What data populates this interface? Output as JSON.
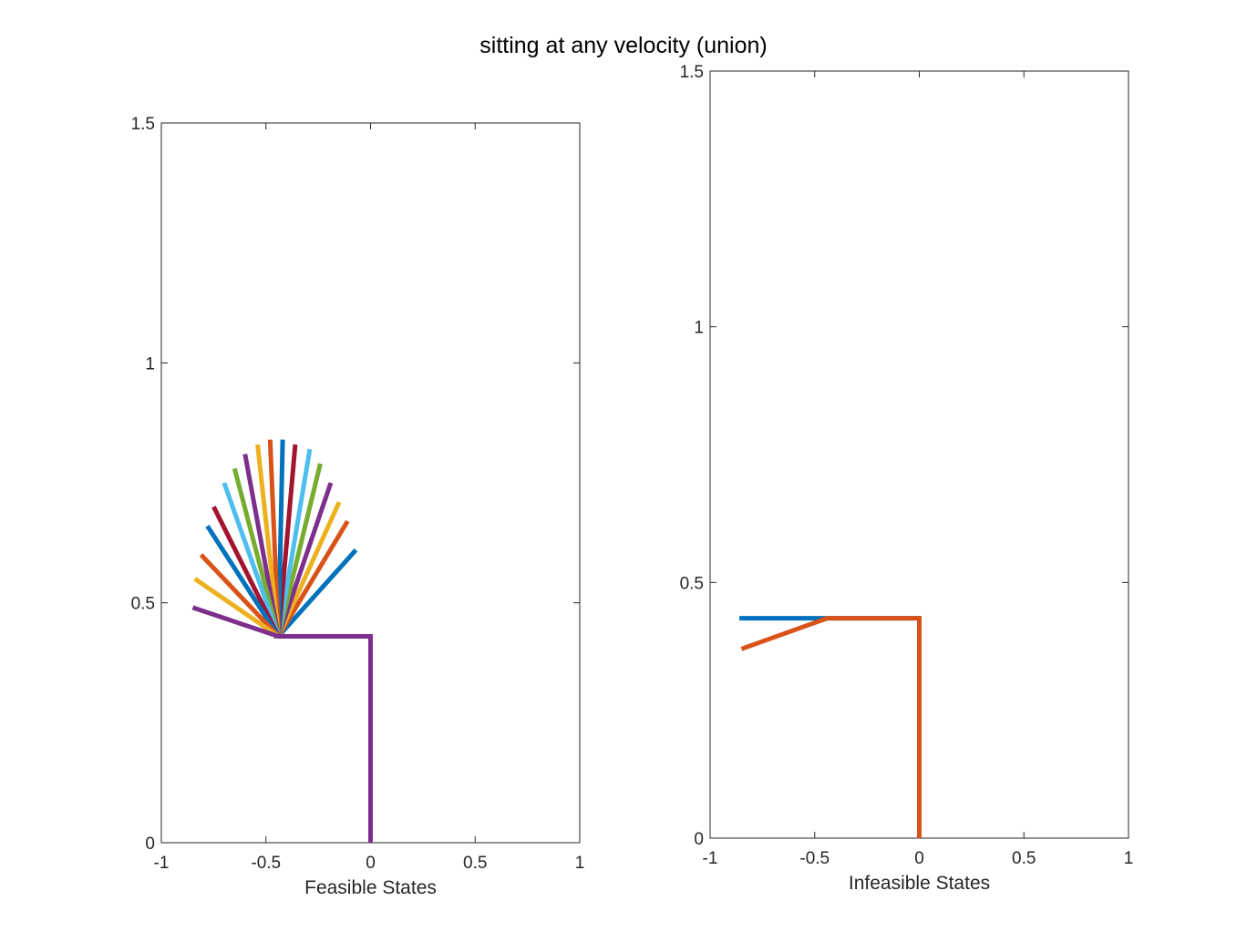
{
  "figure": {
    "title": "sitting at any velocity (union)"
  },
  "colors": {
    "axis": "#262626",
    "palette": [
      "#0072BD",
      "#D95319",
      "#EDB120",
      "#7E2F8E",
      "#77AC30",
      "#4DBEEE",
      "#A2142F"
    ]
  },
  "chart_data": [
    {
      "type": "line",
      "xlabel": "Feasible States",
      "ylabel": "",
      "xlim": [
        -1,
        1
      ],
      "ylim": [
        0,
        1.5
      ],
      "xticks": [
        "-1",
        "-0.5",
        "0",
        "0.5",
        "1"
      ],
      "yticks": [
        "0",
        "0.5",
        "1",
        "1.5"
      ],
      "grid": false,
      "legend": "none",
      "series": [
        {
          "x": [
            0,
            0,
            -0.44,
            -0.07
          ],
          "y": [
            0,
            0.43,
            0.43,
            0.61
          ],
          "color": "#0072BD"
        },
        {
          "x": [
            0,
            0,
            -0.44,
            -0.11
          ],
          "y": [
            0,
            0.43,
            0.43,
            0.67
          ],
          "color": "#D95319"
        },
        {
          "x": [
            0,
            0,
            -0.44,
            -0.15
          ],
          "y": [
            0,
            0.43,
            0.43,
            0.71
          ],
          "color": "#EDB120"
        },
        {
          "x": [
            0,
            0,
            -0.44,
            -0.19
          ],
          "y": [
            0,
            0.43,
            0.43,
            0.75
          ],
          "color": "#7E2F8E"
        },
        {
          "x": [
            0,
            0,
            -0.44,
            -0.24
          ],
          "y": [
            0,
            0.43,
            0.43,
            0.79
          ],
          "color": "#77AC30"
        },
        {
          "x": [
            0,
            0,
            -0.44,
            -0.29
          ],
          "y": [
            0,
            0.43,
            0.43,
            0.82
          ],
          "color": "#4DBEEE"
        },
        {
          "x": [
            0,
            0,
            -0.44,
            -0.36
          ],
          "y": [
            0,
            0.43,
            0.43,
            0.83
          ],
          "color": "#A2142F"
        },
        {
          "x": [
            0,
            0,
            -0.44,
            -0.42
          ],
          "y": [
            0,
            0.43,
            0.43,
            0.84
          ],
          "color": "#0072BD"
        },
        {
          "x": [
            0,
            0,
            -0.44,
            -0.48
          ],
          "y": [
            0,
            0.43,
            0.43,
            0.84
          ],
          "color": "#D95319"
        },
        {
          "x": [
            0,
            0,
            -0.44,
            -0.54
          ],
          "y": [
            0,
            0.43,
            0.43,
            0.83
          ],
          "color": "#EDB120"
        },
        {
          "x": [
            0,
            0,
            -0.44,
            -0.6
          ],
          "y": [
            0,
            0.43,
            0.43,
            0.81
          ],
          "color": "#7E2F8E"
        },
        {
          "x": [
            0,
            0,
            -0.44,
            -0.65
          ],
          "y": [
            0,
            0.43,
            0.43,
            0.78
          ],
          "color": "#77AC30"
        },
        {
          "x": [
            0,
            0,
            -0.44,
            -0.7
          ],
          "y": [
            0,
            0.43,
            0.43,
            0.75
          ],
          "color": "#4DBEEE"
        },
        {
          "x": [
            0,
            0,
            -0.44,
            -0.75
          ],
          "y": [
            0,
            0.43,
            0.43,
            0.7
          ],
          "color": "#A2142F"
        },
        {
          "x": [
            0,
            0,
            -0.44,
            -0.78
          ],
          "y": [
            0,
            0.43,
            0.43,
            0.66
          ],
          "color": "#0072BD"
        },
        {
          "x": [
            0,
            0,
            -0.44,
            -0.81
          ],
          "y": [
            0,
            0.43,
            0.43,
            0.6
          ],
          "color": "#D95319"
        },
        {
          "x": [
            0,
            0,
            -0.44,
            -0.84
          ],
          "y": [
            0,
            0.43,
            0.43,
            0.55
          ],
          "color": "#EDB120"
        },
        {
          "x": [
            0,
            0,
            -0.44,
            -0.85
          ],
          "y": [
            0,
            0.43,
            0.43,
            0.49
          ],
          "color": "#7E2F8E"
        }
      ]
    },
    {
      "type": "line",
      "xlabel": "Infeasible States",
      "ylabel": "",
      "xlim": [
        -1,
        1
      ],
      "ylim": [
        0,
        1.5
      ],
      "xticks": [
        "-1",
        "-0.5",
        "0",
        "0.5",
        "1"
      ],
      "yticks": [
        "0",
        "0.5",
        "1",
        "1.5"
      ],
      "grid": false,
      "legend": "none",
      "series": [
        {
          "x": [
            0,
            0,
            -0.44,
            -0.86
          ],
          "y": [
            0,
            0.43,
            0.43,
            0.43
          ],
          "color": "#0072BD"
        },
        {
          "x": [
            0,
            0,
            -0.44,
            -0.85
          ],
          "y": [
            0,
            0.43,
            0.43,
            0.37
          ],
          "color": "#D95319"
        }
      ]
    }
  ]
}
